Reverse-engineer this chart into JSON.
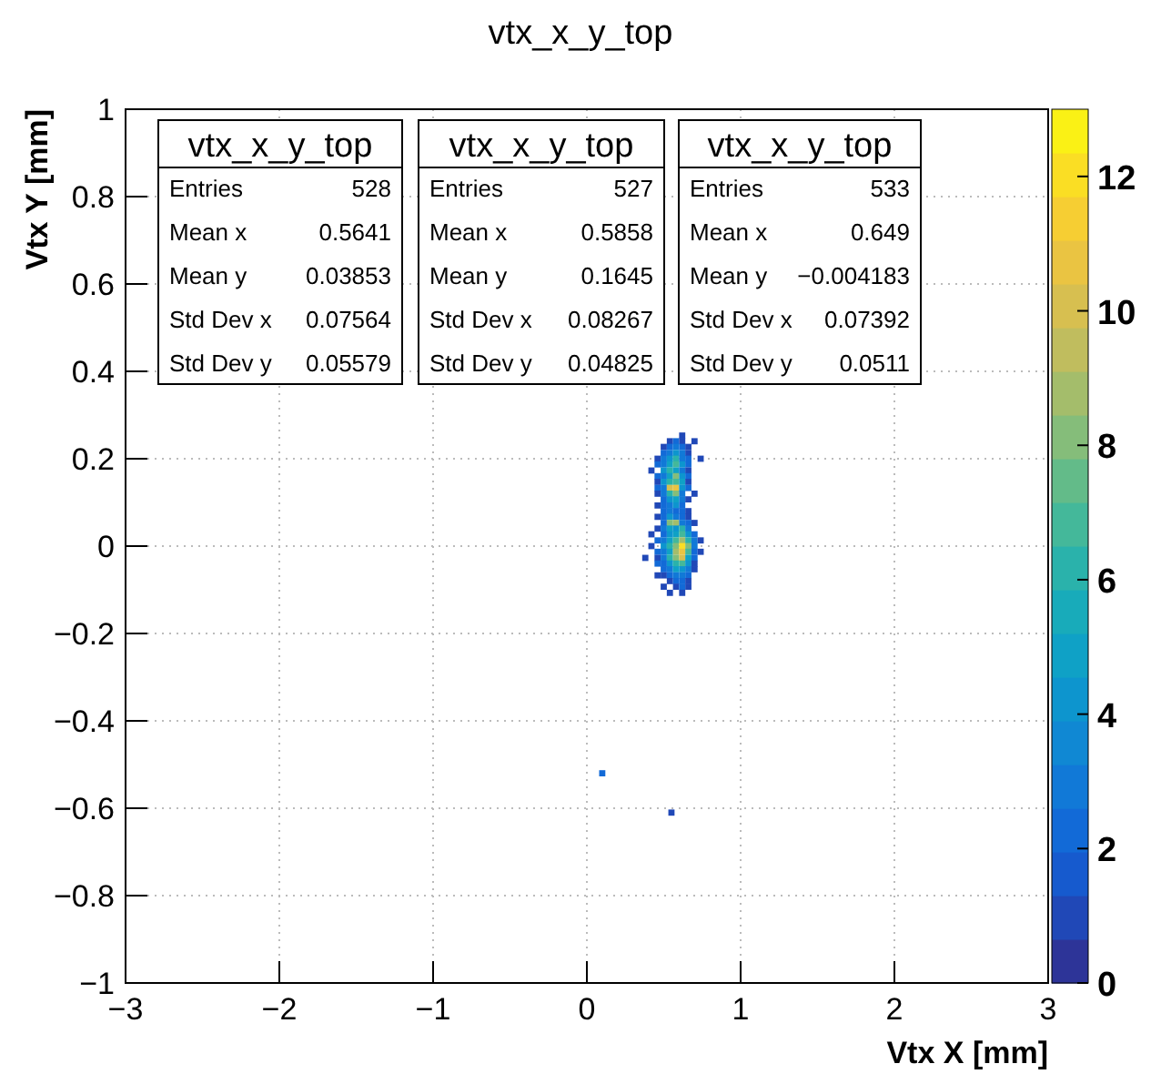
{
  "chart_data": {
    "type": "scatter",
    "title": "vtx_x_y_top",
    "xlabel": "Vtx X [mm]",
    "ylabel": "Vtx Y [mm]",
    "xlim": [
      -3,
      3
    ],
    "xticks": [
      -3,
      -2,
      -1,
      0,
      1,
      2,
      3
    ],
    "ylim": [
      -1,
      1
    ],
    "yticks": [
      -1,
      -0.8,
      -0.6,
      -0.4,
      -0.2,
      0,
      0.2,
      0.4,
      0.6,
      0.8,
      1
    ],
    "grid": true,
    "marker": "square",
    "clim": [
      0,
      13
    ],
    "cticks": [
      0,
      2,
      4,
      6,
      8,
      10,
      12
    ],
    "annotations": [
      "vtx_x_y_top",
      "Entries",
      "528",
      "Mean x",
      "0.5641",
      "Mean y",
      "0.03853",
      "Std Dev x",
      "0.07564",
      "Std Dev y",
      "0.05579",
      "vtx_x_y_top",
      "Entries",
      "527",
      "Mean x",
      "0.5858",
      "Mean y",
      "0.1645",
      "Std Dev x",
      "0.08267",
      "Std Dev y",
      "0.04825",
      "vtx_x_y_top",
      "Entries",
      "533",
      "Mean x",
      "0.649",
      "Mean y",
      "−0.004183",
      "Std Dev x",
      "0.07392",
      "Std Dev y",
      "0.0511"
    ],
    "series": [
      {
        "x": [
          0.62,
          0.54,
          0.58,
          0.62,
          0.7,
          0.5,
          0.54,
          0.58,
          0.62,
          0.66,
          0.5,
          0.54,
          0.58,
          0.62,
          0.66,
          0.46,
          0.5,
          0.54,
          0.58,
          0.62,
          0.66,
          0.74,
          0.46,
          0.5,
          0.54,
          0.58,
          0.62,
          0.66,
          0.42,
          0.5,
          0.54,
          0.58,
          0.62,
          0.66,
          0.46,
          0.5,
          0.54,
          0.58,
          0.62,
          0.66,
          0.46,
          0.5,
          0.54,
          0.58,
          0.62,
          0.66,
          0.46,
          0.5,
          0.54,
          0.58,
          0.62,
          0.66,
          0.46,
          0.5,
          0.54,
          0.58,
          0.62,
          0.7,
          0.5,
          0.54,
          0.58,
          0.62,
          0.66,
          0.46,
          0.5,
          0.54,
          0.58,
          0.62,
          0.5,
          0.54,
          0.58,
          0.62,
          0.66,
          0.46,
          0.5,
          0.54,
          0.58,
          0.62,
          0.66,
          0.5,
          0.54,
          0.58,
          0.62,
          0.66,
          0.7,
          0.46,
          0.5,
          0.54,
          0.58,
          0.62,
          0.66,
          0.42,
          0.5,
          0.54,
          0.58,
          0.62,
          0.66,
          0.7,
          0.46,
          0.5,
          0.54,
          0.58,
          0.62,
          0.66,
          0.7,
          0.74,
          0.42,
          0.5,
          0.54,
          0.58,
          0.62,
          0.66,
          0.7,
          0.46,
          0.5,
          0.54,
          0.58,
          0.62,
          0.66,
          0.7,
          0.74,
          0.38,
          0.46,
          0.5,
          0.54,
          0.58,
          0.62,
          0.66,
          0.7,
          0.46,
          0.5,
          0.54,
          0.58,
          0.62,
          0.66,
          0.7,
          0.5,
          0.54,
          0.58,
          0.62,
          0.66,
          0.7,
          0.46,
          0.5,
          0.54,
          0.58,
          0.62,
          0.66,
          0.54,
          0.58,
          0.62,
          0.66,
          0.5,
          0.58,
          0.62,
          0.66,
          0.54,
          0.62,
          0.1,
          0.55
        ],
        "values": [
          0.253,
          0.24,
          0.24,
          0.24,
          0.24,
          0.227,
          0.227,
          0.227,
          0.227,
          0.227,
          0.213,
          0.213,
          0.213,
          0.213,
          0.213,
          0.2,
          0.2,
          0.2,
          0.2,
          0.2,
          0.2,
          0.2,
          0.187,
          0.187,
          0.187,
          0.187,
          0.187,
          0.187,
          0.173,
          0.173,
          0.173,
          0.173,
          0.173,
          0.173,
          0.16,
          0.16,
          0.16,
          0.16,
          0.16,
          0.16,
          0.147,
          0.147,
          0.147,
          0.147,
          0.147,
          0.147,
          0.133,
          0.133,
          0.133,
          0.133,
          0.133,
          0.133,
          0.12,
          0.12,
          0.12,
          0.12,
          0.12,
          0.12,
          0.107,
          0.107,
          0.107,
          0.107,
          0.107,
          0.093,
          0.093,
          0.093,
          0.093,
          0.093,
          0.08,
          0.08,
          0.08,
          0.08,
          0.08,
          0.067,
          0.067,
          0.067,
          0.067,
          0.067,
          0.067,
          0.053,
          0.053,
          0.053,
          0.053,
          0.053,
          0.053,
          0.04,
          0.04,
          0.04,
          0.04,
          0.04,
          0.04,
          0.027,
          0.027,
          0.027,
          0.027,
          0.027,
          0.027,
          0.027,
          0.013,
          0.013,
          0.013,
          0.013,
          0.013,
          0.013,
          0.013,
          0.013,
          0,
          0,
          0,
          0,
          0,
          0,
          0,
          -0.013,
          -0.013,
          -0.013,
          -0.013,
          -0.013,
          -0.013,
          -0.013,
          -0.013,
          -0.027,
          -0.027,
          -0.027,
          -0.027,
          -0.027,
          -0.027,
          -0.027,
          -0.027,
          -0.04,
          -0.04,
          -0.04,
          -0.04,
          -0.04,
          -0.04,
          -0.04,
          -0.053,
          -0.053,
          -0.053,
          -0.053,
          -0.053,
          -0.053,
          -0.067,
          -0.067,
          -0.067,
          -0.067,
          -0.067,
          -0.067,
          -0.08,
          -0.08,
          -0.08,
          -0.08,
          -0.093,
          -0.093,
          -0.093,
          -0.093,
          -0.107,
          -0.107,
          -0.52,
          -0.61
        ],
        "cvalues": [
          1,
          1,
          2,
          1,
          1,
          1,
          2,
          3,
          2,
          1,
          2,
          3,
          4,
          3,
          1,
          1,
          3,
          4,
          6,
          3,
          2,
          1,
          2,
          3,
          5,
          7,
          4,
          2,
          1,
          4,
          6,
          5,
          3,
          1,
          2,
          3,
          5,
          8,
          4,
          2,
          1,
          4,
          6,
          7,
          5,
          1,
          2,
          3,
          10,
          11,
          4,
          2,
          1,
          3,
          6,
          8,
          3,
          1,
          2,
          4,
          5,
          3,
          1,
          1,
          2,
          3,
          4,
          2,
          2,
          3,
          2,
          2,
          1,
          1,
          2,
          4,
          3,
          2,
          1,
          2,
          8,
          9,
          3,
          2,
          1,
          1,
          3,
          5,
          4,
          6,
          3,
          1,
          2,
          4,
          5,
          7,
          4,
          2,
          2,
          3,
          5,
          7,
          9,
          6,
          3,
          1,
          1,
          4,
          6,
          8,
          12,
          8,
          3,
          2,
          3,
          5,
          9,
          11,
          7,
          2,
          1,
          1,
          1,
          3,
          6,
          8,
          10,
          5,
          2,
          2,
          2,
          4,
          6,
          7,
          4,
          1,
          2,
          3,
          5,
          4,
          3,
          1,
          1,
          1,
          2,
          3,
          3,
          2,
          1,
          2,
          2,
          1,
          1,
          1,
          2,
          1,
          1,
          1,
          2,
          1
        ]
      }
    ]
  }
}
